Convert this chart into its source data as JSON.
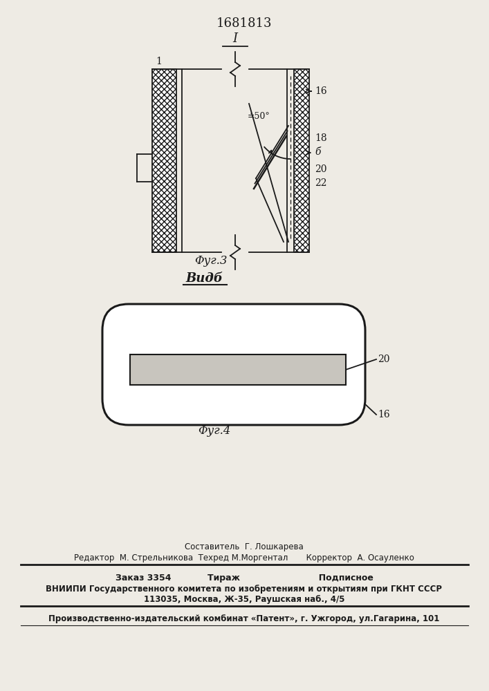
{
  "title": "1681813",
  "fig3_caption": "Φуг.3",
  "vid_caption": "Видб",
  "fig4_caption": "Φуг.4",
  "bg_color": "#eeebe4",
  "line_color": "#1a1a1a",
  "label_1": "1",
  "label_16": "16",
  "label_18": "18",
  "label_b": "б",
  "label_20": "20",
  "label_22": "22",
  "label_I": "I",
  "label_angle": "≐50°",
  "footer_line1": "Составитель  Г. Лошкарева",
  "footer_line2": "Редактор  М. Стрельникова  Техред М.Моргентал       Корректор  А. Осауленко",
  "footer_line3": "Заказ 3354            Тираж                          Подписное",
  "footer_line4": "ВНИИПИ Государственного комитета по изобретениям и открытиям при ГКНТ СССР",
  "footer_line5": "113035, Москва, Ж-35, Раушская наб., 4/5",
  "footer_line6": "Производственно-издательский комбинат «Патент», г. Ужгород, ул.Гагарина, 101"
}
